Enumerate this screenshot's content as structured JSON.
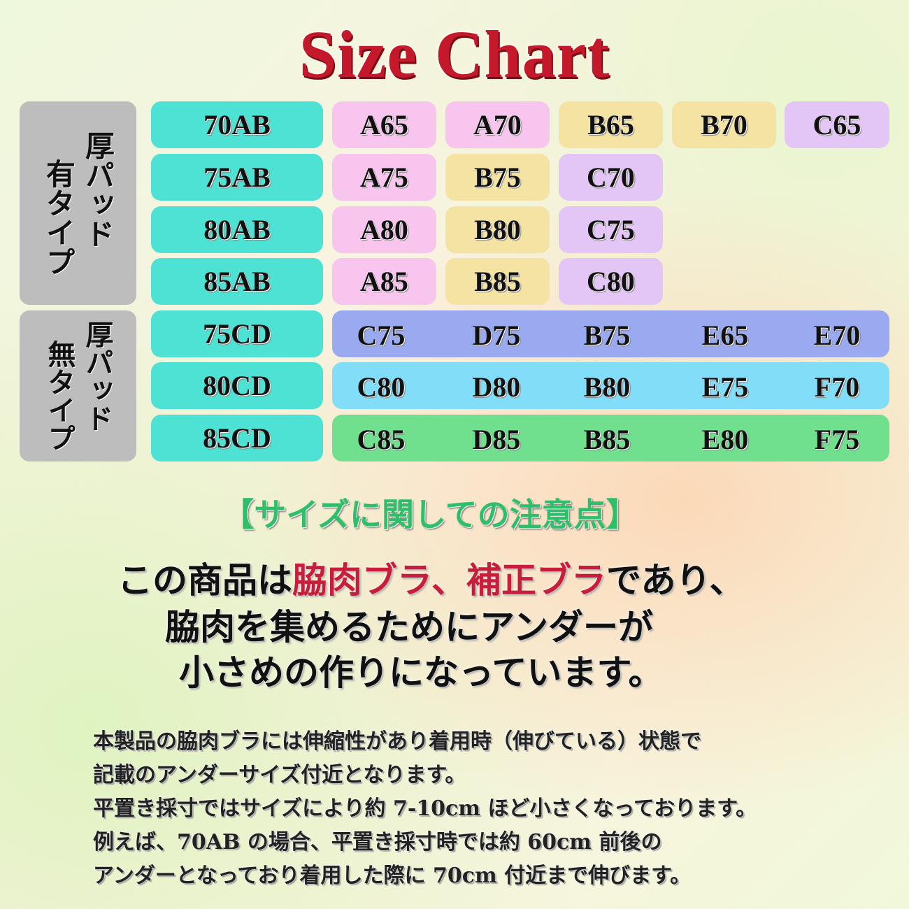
{
  "title": "Size Chart",
  "groups": [
    {
      "label_col1": "厚パッド",
      "label_col2": "有タイプ"
    },
    {
      "label_col1": "厚パッド",
      "label_col2": "無タイプ"
    }
  ],
  "padded_rows": [
    {
      "band": "70AB",
      "sizes": [
        "A65",
        "A70",
        "B65",
        "B70",
        "C65"
      ]
    },
    {
      "band": "75AB",
      "sizes": [
        "A75",
        "B75",
        "C70"
      ]
    },
    {
      "band": "80AB",
      "sizes": [
        "A80",
        "B80",
        "C75"
      ]
    },
    {
      "band": "85AB",
      "sizes": [
        "A85",
        "B85",
        "C80"
      ]
    }
  ],
  "unpadded_rows": [
    {
      "band": "75CD",
      "sizes": [
        "C75",
        "D75",
        "B75",
        "E65",
        "E70"
      ],
      "color": "#9aaaf0"
    },
    {
      "band": "80CD",
      "sizes": [
        "C80",
        "D80",
        "B80",
        "E75",
        "F70"
      ],
      "color": "#82def8"
    },
    {
      "band": "85CD",
      "sizes": [
        "C85",
        "D85",
        "B85",
        "E80",
        "F75"
      ],
      "color": "#70e08f"
    }
  ],
  "colors": {
    "band": "#4de2d4",
    "A": "#f8c5ee",
    "B": "#f5e3a3",
    "C": "#e3c6f6",
    "label": "#bdbdbd",
    "title": "#c4182b",
    "highlight": "#c81e3a",
    "note_heading": "#2fbf6a"
  },
  "note_heading": "【サイズに関しての注意点】",
  "main_text": {
    "l1a": "この商品は",
    "l1b": "脇肉ブラ",
    "l1c": "、",
    "l1d": "補正ブラ",
    "l1e": "であり、",
    "l2": "脇肉を集めるためにアンダーが",
    "l3": "小さめの作りになっています。"
  },
  "details": [
    "本製品の脇肉ブラには伸縮性があり着用時（伸びている）状態で",
    "記載のアンダーサイズ付近となります。",
    "平置き採寸ではサイズにより約 7-10cm ほど小さくなっております。",
    "例えば、70AB の場合、平置き採寸時では約 60cm 前後の",
    "アンダーとなっており着用した際に 70cm 付近まで伸びます。"
  ]
}
